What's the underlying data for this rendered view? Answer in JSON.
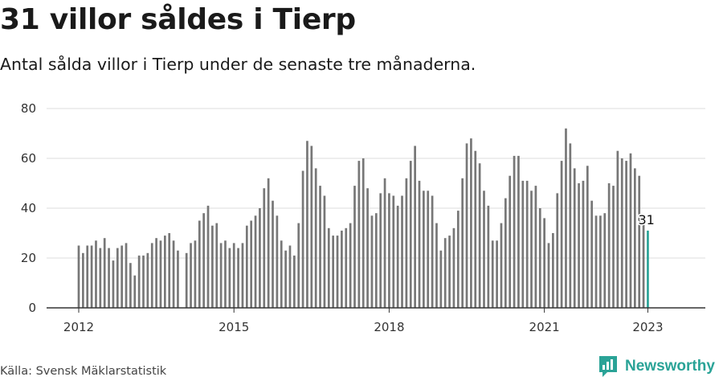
{
  "header": {
    "title": "31 villor såldes i Tierp",
    "subtitle": "Antal sålda villor i Tierp under de senaste tre månaderna."
  },
  "footer": {
    "source": "Källa: Svensk Mäklarstatistik",
    "brand": "Newsworthy"
  },
  "colors": {
    "bar": "#777777",
    "highlight_bar": "#2aa397",
    "grid": "#dddddd",
    "axis": "#333333",
    "brand": "#2aa397"
  },
  "chart_data": {
    "type": "bar",
    "x_unit": "month",
    "x_start": "2012-01",
    "x_end": "2023-01",
    "x_tick_labels": [
      "2012",
      "2015",
      "2018",
      "2021",
      "2023"
    ],
    "ylim": [
      0,
      80
    ],
    "y_ticks": [
      0,
      20,
      40,
      60,
      80
    ],
    "grid": true,
    "values": [
      25,
      22,
      25,
      25,
      27,
      24,
      28,
      24,
      19,
      24,
      25,
      26,
      18,
      13,
      21,
      21,
      22,
      26,
      28,
      27,
      29,
      30,
      27,
      23,
      null,
      22,
      26,
      27,
      35,
      38,
      41,
      33,
      34,
      26,
      27,
      24,
      26,
      24,
      26,
      33,
      35,
      37,
      40,
      48,
      52,
      43,
      37,
      27,
      23,
      25,
      21,
      34,
      55,
      67,
      65,
      56,
      49,
      45,
      32,
      29,
      29,
      31,
      32,
      34,
      49,
      59,
      60,
      48,
      37,
      38,
      46,
      52,
      46,
      45,
      41,
      45,
      52,
      59,
      65,
      51,
      47,
      47,
      45,
      34,
      23,
      28,
      29,
      32,
      39,
      52,
      66,
      68,
      63,
      58,
      47,
      41,
      27,
      27,
      34,
      44,
      53,
      61,
      61,
      51,
      51,
      47,
      49,
      40,
      36,
      26,
      30,
      46,
      59,
      72,
      66,
      56,
      50,
      51,
      57,
      43,
      37,
      37,
      38,
      50,
      49,
      63,
      60,
      59,
      62,
      56,
      53,
      35,
      31
    ],
    "highlight_last": true,
    "annotation": "31"
  }
}
